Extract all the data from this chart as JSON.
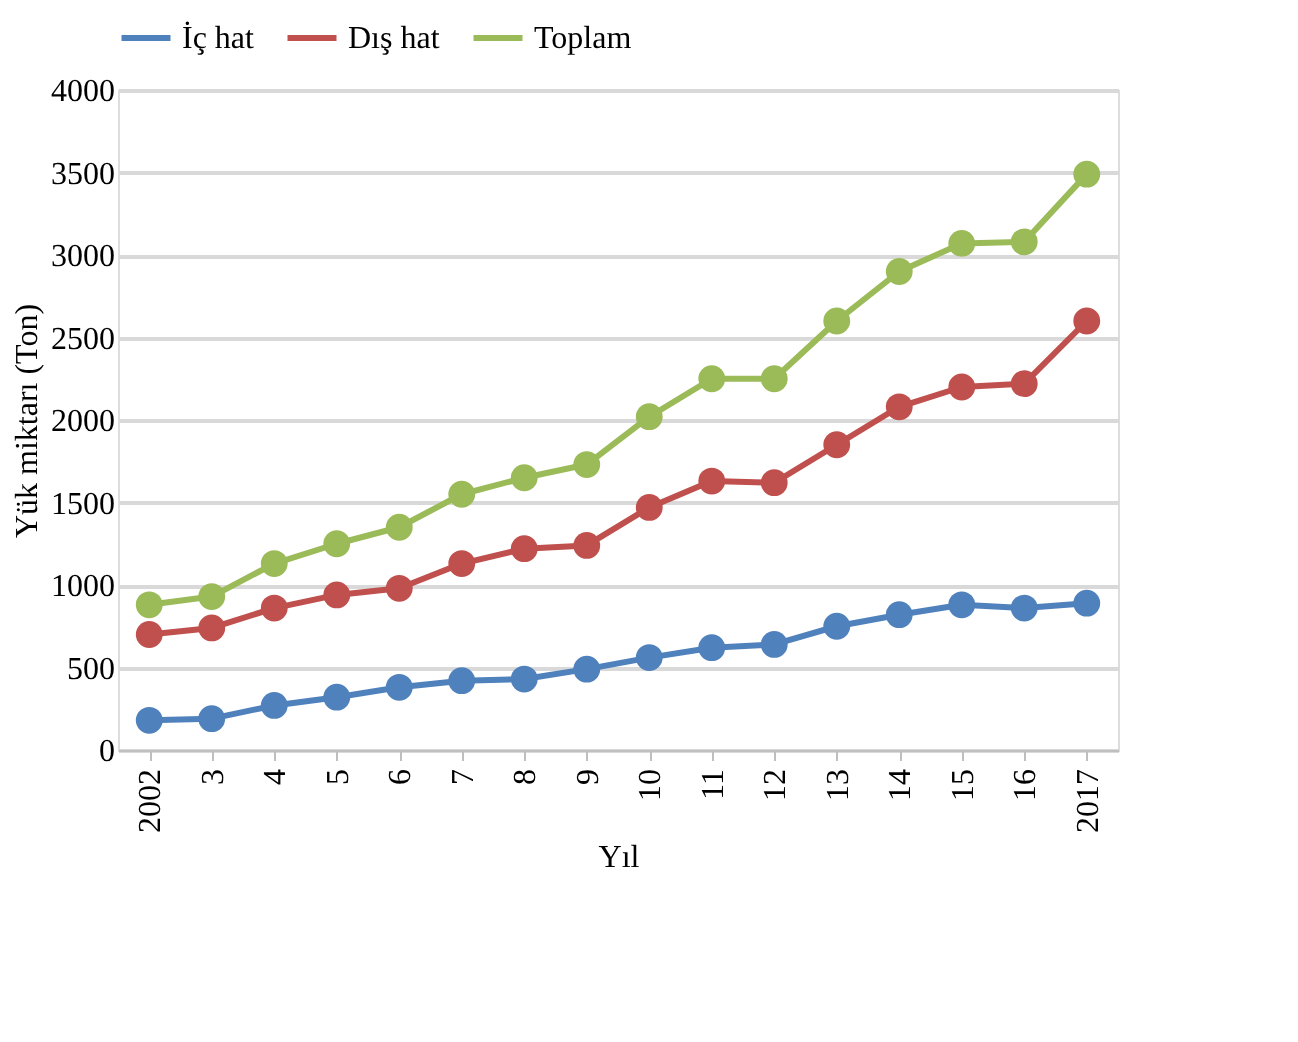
{
  "chart_data": {
    "type": "line",
    "xlabel": "Yıl",
    "ylabel": "Yük miktarı (Ton)",
    "categories": [
      "2002",
      "3",
      "4",
      "5",
      "6",
      "7",
      "8",
      "9",
      "10",
      "11",
      "12",
      "13",
      "14",
      "15",
      "16",
      "2017"
    ],
    "series": [
      {
        "name": "İç hat",
        "color": "#4f81bd",
        "values": [
          180,
          190,
          270,
          320,
          380,
          420,
          430,
          490,
          560,
          620,
          640,
          750,
          820,
          880,
          860,
          890
        ]
      },
      {
        "name": "Dış hat",
        "color": "#c0504d",
        "values": [
          700,
          740,
          860,
          940,
          980,
          1130,
          1220,
          1240,
          1470,
          1630,
          1620,
          1850,
          2080,
          2200,
          2220,
          2600
        ]
      },
      {
        "name": "Toplam",
        "color": "#9bbb59",
        "values": [
          880,
          930,
          1130,
          1250,
          1350,
          1550,
          1650,
          1730,
          2020,
          2250,
          2250,
          2600,
          2900,
          3070,
          3080,
          3490
        ]
      }
    ],
    "ylim": [
      0,
      4000
    ],
    "yticks": [
      0,
      500,
      1000,
      1500,
      2000,
      2500,
      3000,
      3500,
      4000
    ],
    "grid": "y",
    "legend": "top",
    "marker": "circle",
    "line_style": "solid"
  }
}
